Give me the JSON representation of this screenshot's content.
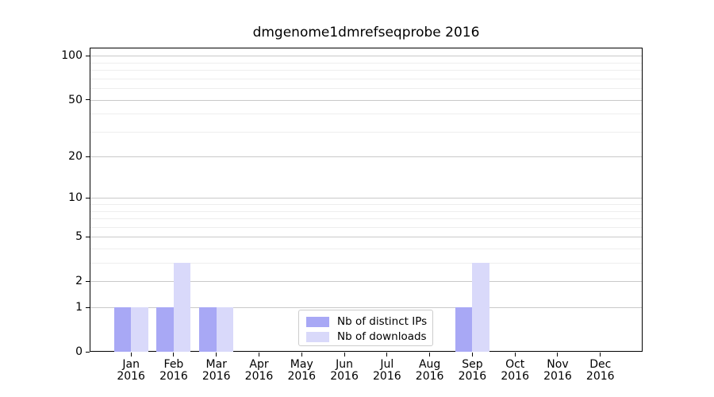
{
  "chart_data": {
    "type": "bar",
    "title": "dmgenome1dmrefseqprobe 2016",
    "categories": [
      "Jan",
      "Feb",
      "Mar",
      "Apr",
      "May",
      "Jun",
      "Jul",
      "Aug",
      "Sep",
      "Oct",
      "Nov",
      "Dec"
    ],
    "year_label": "2016",
    "series": [
      {
        "name": "Nb of distinct IPs",
        "color": "#a8a8f5",
        "values": [
          1,
          1,
          1,
          0,
          0,
          0,
          0,
          0,
          1,
          0,
          0,
          0
        ]
      },
      {
        "name": "Nb of downloads",
        "color": "#d9d9fa",
        "values": [
          1,
          3,
          1,
          0,
          0,
          0,
          0,
          0,
          3,
          0,
          0,
          0
        ]
      }
    ],
    "xlabel": "",
    "ylabel": "",
    "yscale": "log1p",
    "ylim": [
      0,
      114
    ],
    "yticks": [
      0,
      1,
      2,
      5,
      10,
      20,
      50,
      100
    ],
    "yticks_minor": [
      3,
      4,
      6,
      7,
      8,
      9,
      30,
      40,
      60,
      70,
      80,
      90
    ],
    "grid": true,
    "legend_position": "lower center"
  },
  "colors": {
    "background": "#ffffff",
    "bar_distinct_ips": "#a8a8f5",
    "bar_downloads": "#d9d9fa",
    "grid_major": "#c9c9c9",
    "grid_minor": "#eeeeee",
    "spine": "#000000",
    "text": "#000000",
    "legend_border": "#cccccc"
  }
}
